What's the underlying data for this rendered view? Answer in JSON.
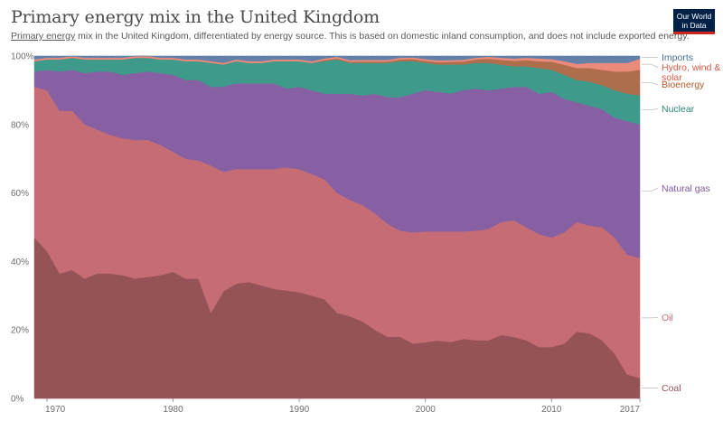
{
  "header": {
    "title": "Primary energy mix in the United Kingdom",
    "subtitle_link": "Primary energy",
    "subtitle_rest": " mix in the United Kingdom, differentiated by energy source. This is based on domestic inland consumption, and does not include exported energy.",
    "logo_line1": "Our World",
    "logo_line2": "in Data"
  },
  "colors": {
    "Coal": "#955358",
    "Oil": "#c66c74",
    "Natural gas": "#8660a3",
    "Nuclear": "#3e9a8b",
    "Bioenergy": "#ae6e4c",
    "Hydro, wind & solar": "#ec8a7c",
    "Imports": "#6381a8"
  },
  "label_colors": {
    "Coal": "#955358",
    "Oil": "#c66c74",
    "Natural gas": "#7d5a9c",
    "Nuclear": "#2e8676",
    "Bioenergy": "#b05b2a",
    "Hydro, wind & solar": "#d65a45",
    "Imports": "#4c6e96"
  },
  "chart_data": {
    "type": "area",
    "stacked": true,
    "x": [
      1969,
      1970,
      1971,
      1972,
      1973,
      1974,
      1975,
      1976,
      1977,
      1978,
      1979,
      1980,
      1981,
      1982,
      1983,
      1984,
      1985,
      1986,
      1987,
      1988,
      1989,
      1990,
      1991,
      1992,
      1993,
      1994,
      1995,
      1996,
      1997,
      1998,
      1999,
      2000,
      2001,
      2002,
      2003,
      2004,
      2005,
      2006,
      2007,
      2008,
      2009,
      2010,
      2011,
      2012,
      2013,
      2014,
      2015,
      2016,
      2017
    ],
    "series": [
      {
        "name": "Coal",
        "values": [
          47,
          43,
          36.5,
          37.5,
          35,
          36.5,
          36.5,
          36,
          35,
          35.5,
          36,
          37,
          35,
          35,
          25,
          31.5,
          33.5,
          34,
          33,
          32,
          31.5,
          31,
          30,
          29,
          25,
          24,
          22.5,
          20,
          18,
          18,
          16,
          16.5,
          17,
          16.5,
          17.5,
          17,
          17,
          18.5,
          18,
          17,
          15,
          15,
          16,
          19.5,
          19,
          17,
          13,
          7,
          6
        ]
      },
      {
        "name": "Oil",
        "values": [
          44,
          47,
          47.5,
          46.5,
          45,
          42,
          40.5,
          40,
          40.5,
          40,
          38,
          35,
          35,
          34.5,
          43,
          35,
          33.5,
          33,
          34,
          35,
          36,
          36,
          35.5,
          35,
          35,
          34,
          34,
          34,
          33,
          31,
          32.5,
          32.5,
          32,
          32.5,
          31.5,
          32,
          32.5,
          33,
          34,
          33,
          33,
          32,
          32.5,
          32,
          31.5,
          33,
          34,
          35,
          35
        ]
      },
      {
        "name": "Natural gas",
        "values": [
          4.5,
          6,
          11.5,
          12,
          15,
          17,
          18.5,
          18.5,
          19.5,
          20,
          21,
          22.5,
          23,
          23.5,
          23,
          25,
          25,
          25,
          25,
          25,
          23,
          24,
          24.5,
          25,
          29,
          31,
          32,
          35,
          37,
          39,
          40.5,
          41.5,
          41,
          40.5,
          41.5,
          41.5,
          40.5,
          39,
          39,
          41,
          41,
          42.5,
          39,
          35,
          35,
          34.5,
          35,
          39,
          39
        ]
      },
      {
        "name": "Nuclear",
        "values": [
          3,
          3,
          3.5,
          3.5,
          4,
          3.5,
          3.5,
          4.5,
          4.5,
          4,
          4,
          4.5,
          5.5,
          5.5,
          7,
          6.5,
          6.5,
          6,
          6,
          6.5,
          8,
          7.5,
          8,
          9.5,
          10,
          9,
          9.5,
          9,
          10,
          10.5,
          9.5,
          8,
          8,
          8.5,
          7.5,
          7.5,
          8,
          7,
          6,
          6,
          7.5,
          6.5,
          7,
          6.5,
          7,
          7,
          8,
          8,
          8.5
        ]
      },
      {
        "name": "Bioenergy",
        "values": [
          0,
          0,
          0,
          0,
          0,
          0,
          0,
          0,
          0,
          0,
          0,
          0,
          0,
          0,
          0,
          0,
          0,
          0,
          0,
          0,
          0,
          0,
          0,
          0.3,
          0.3,
          0.3,
          0.4,
          0.4,
          0.4,
          0.5,
          0.6,
          0.6,
          0.7,
          0.8,
          0.9,
          1,
          1.2,
          1.4,
          1.6,
          1.8,
          2,
          2.3,
          3,
          3.5,
          4,
          4.5,
          5.5,
          6.5,
          7.5
        ]
      },
      {
        "name": "Hydro, wind & solar",
        "values": [
          0.5,
          0.5,
          0.5,
          0.5,
          0.5,
          0.5,
          0.5,
          0.5,
          0.5,
          0.5,
          0.5,
          0.5,
          0.5,
          0.5,
          0.5,
          0.5,
          0.5,
          0.5,
          0.5,
          0.5,
          0.5,
          0.5,
          0.5,
          0.5,
          0.5,
          0.5,
          0.5,
          0.5,
          0.5,
          0.5,
          0.5,
          0.5,
          0.5,
          0.5,
          0.5,
          0.5,
          0.6,
          0.6,
          0.7,
          0.7,
          0.8,
          0.8,
          1,
          1.2,
          1.5,
          2,
          2.5,
          2.5,
          3.2
        ]
      },
      {
        "name": "Imports",
        "values": [
          1,
          0.5,
          0.5,
          0,
          0.5,
          0.5,
          0.5,
          0.5,
          0,
          0,
          0.5,
          0.5,
          1,
          1,
          1.5,
          2,
          1,
          1.5,
          1.5,
          1,
          1,
          1,
          1.5,
          0.7,
          0.2,
          1.2,
          1.1,
          1.1,
          1.1,
          0.5,
          0.4,
          0.9,
          1.3,
          1.2,
          1.1,
          0.5,
          0.2,
          0.5,
          0.7,
          0.5,
          0.7,
          0.9,
          1.5,
          2.3,
          2,
          2,
          2,
          2,
          0.8
        ]
      }
    ],
    "x_ticks": [
      1970,
      1980,
      1990,
      2000,
      2010,
      2017
    ],
    "y_ticks": [
      "0%",
      "20%",
      "40%",
      "60%",
      "80%",
      "100%"
    ],
    "xlim": [
      1969,
      2017
    ],
    "ylim": [
      0,
      100
    ],
    "y_unit": "%",
    "grid": "horizontal-dashed",
    "legend": "right-inline-labels",
    "legend_labels": [
      "Imports",
      "Hydro, wind &",
      "solar",
      "Bioenergy",
      "Nuclear",
      "Natural gas",
      "Oil",
      "Coal"
    ]
  }
}
